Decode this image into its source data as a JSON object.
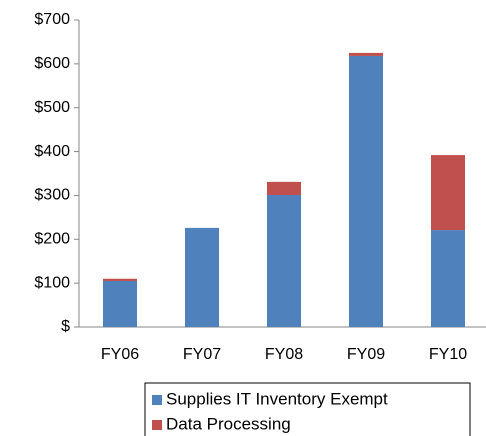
{
  "chart_data": {
    "type": "stacked_bar",
    "categories": [
      "FY06",
      "FY07",
      "FY08",
      "FY09",
      "FY10"
    ],
    "series": [
      {
        "name": "Supplies IT Inventory Exempt",
        "color": "#4f81bd",
        "values": [
          105,
          226,
          301,
          618,
          221
        ]
      },
      {
        "name": "Data Processing",
        "color": "#c0504d",
        "values": [
          5,
          0,
          30,
          7,
          171
        ]
      }
    ],
    "ylim": [
      0,
      700
    ],
    "yticks": [
      {
        "value": 0,
        "label": "$"
      },
      {
        "value": 100,
        "label": "$100"
      },
      {
        "value": 200,
        "label": "$200"
      },
      {
        "value": 300,
        "label": "$300"
      },
      {
        "value": 400,
        "label": "$400"
      },
      {
        "value": 500,
        "label": "$500"
      },
      {
        "value": 600,
        "label": "$600"
      },
      {
        "value": 700,
        "label": "$700"
      }
    ]
  }
}
